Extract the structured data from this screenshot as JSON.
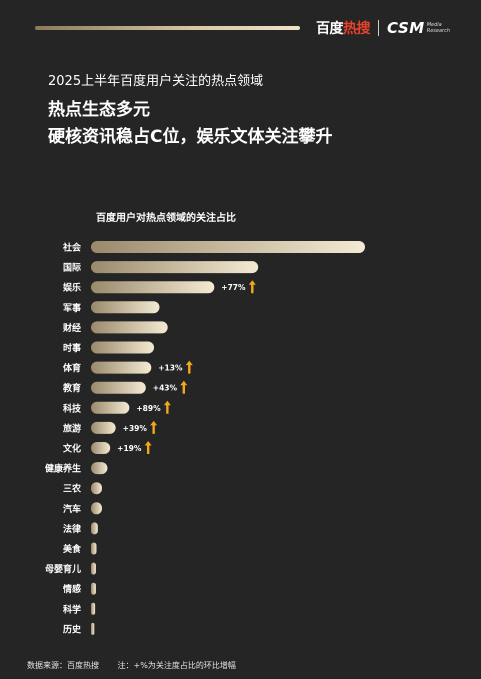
{
  "header": {
    "brand_baidu_a": "百度",
    "brand_baidu_b": "热搜",
    "brand_csm": "CSM",
    "brand_csm_sub1": "Media",
    "brand_csm_sub2": "Research"
  },
  "subtitle": "2025上半年百度用户关注的热点领域",
  "headline_1": "热点生态多元",
  "headline_2": "硬核资讯稳占C位，娱乐文体关注攀升",
  "footer": {
    "source": "数据来源：百度热搜",
    "note": "注：+%为关注度占比的环比增幅"
  },
  "colors": {
    "bar_start": "#9a8a6c",
    "bar_end": "#f4ead3",
    "arrow": "#f2a81d",
    "background": "#252525"
  },
  "chart_data": {
    "type": "bar",
    "orientation": "horizontal",
    "title": "百度用户对热点领域的关注占比",
    "categories": [
      "社会",
      "国际",
      "娱乐",
      "军事",
      "财经",
      "时事",
      "体育",
      "教育",
      "科技",
      "旅游",
      "文化",
      "健康养生",
      "三农",
      "汽车",
      "法律",
      "美食",
      "母婴育儿",
      "情感",
      "科学",
      "历史"
    ],
    "values": [
      100,
      61,
      45,
      25,
      28,
      23,
      22,
      20,
      14,
      9,
      7,
      6,
      4,
      4,
      2.5,
      2,
      1.8,
      1.8,
      1.5,
      1.2
    ],
    "growth_labels": [
      "",
      "",
      "+77%",
      "",
      "",
      "",
      "+13%",
      "+43%",
      "+89%",
      "+39%",
      "+19%",
      "",
      "",
      "",
      "",
      "",
      "",
      "",
      "",
      ""
    ],
    "xlim": [
      0,
      100
    ],
    "grid": false,
    "legend": "none"
  }
}
